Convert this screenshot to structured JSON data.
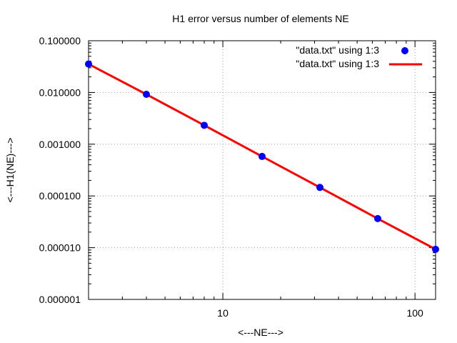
{
  "chart_data": {
    "type": "scatter",
    "title": "H1 error versus number of elements NE",
    "xlabel": "<---NE--->",
    "ylabel": "<---H1(NE)--->",
    "x_scale": "log",
    "y_scale": "log",
    "xlim": [
      2,
      128
    ],
    "ylim": [
      1e-06,
      0.1
    ],
    "x_tick_values": [
      10,
      100
    ],
    "x_tick_labels": [
      "10",
      "100"
    ],
    "y_tick_values": [
      0.1,
      0.01,
      0.001,
      0.0001,
      1e-05,
      1e-06
    ],
    "y_tick_labels": [
      "0.100000",
      "0.010000",
      "0.001000",
      "0.000100",
      "0.000010",
      "0.000001"
    ],
    "grid": true,
    "legend_position": "top-right",
    "series": [
      {
        "name": "\"data.txt\" using 1:3",
        "style": "points",
        "color": "#0000ff",
        "x": [
          2,
          4,
          8,
          16,
          32,
          64,
          128
        ],
        "y": [
          0.0355,
          0.0092,
          0.00232,
          0.00058,
          0.000146,
          3.65e-05,
          9.3e-06
        ]
      },
      {
        "name": "\"data.txt\" using 1:3",
        "style": "line",
        "color": "#ff0000",
        "x": [
          2,
          4,
          8,
          16,
          32,
          64,
          128
        ],
        "y": [
          0.0355,
          0.0092,
          0.00232,
          0.00058,
          0.000146,
          3.65e-05,
          9.3e-06
        ]
      }
    ]
  }
}
